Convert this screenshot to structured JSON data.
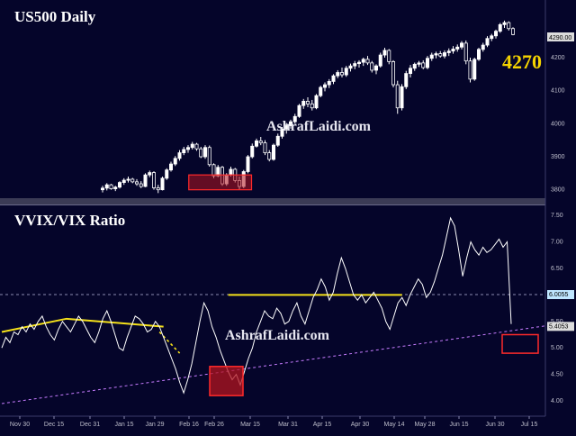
{
  "colors": {
    "background": "#05052a",
    "candle": "#ffffff",
    "ratio_line": "#ffffff",
    "yellow": "#f5e11a",
    "trend_dash": "#c77cff",
    "red_box_fill": "#b3141f",
    "red_box_stroke": "#ff2a2a",
    "grid": "#3a3a6a",
    "label_4270": "#f5d400"
  },
  "chart_data": [
    {
      "type": "candlestick",
      "title": "US500 Daily",
      "watermark": "AshrafLaidi.com",
      "annotation": "4270",
      "last_price_label": "4290.00",
      "y_ticks": [
        "4200",
        "4100",
        "4000",
        "3900",
        "3800"
      ],
      "ylim": [
        3780,
        4320
      ],
      "x_ticks": [
        "Nov 30",
        "Dec 15",
        "Dec 31",
        "Jan 15",
        "Jan 29",
        "Feb 16",
        "Feb 26",
        "Mar 15",
        "Mar 31",
        "Apr 15",
        "Apr 30",
        "May 14",
        "May 28",
        "Jun 15",
        "Jun 30",
        "Jul 15"
      ],
      "candles": [
        [
          3800,
          3812,
          3792,
          3805
        ],
        [
          3805,
          3820,
          3798,
          3815
        ],
        [
          3815,
          3818,
          3800,
          3803
        ],
        [
          3803,
          3812,
          3796,
          3808
        ],
        [
          3808,
          3826,
          3804,
          3822
        ],
        [
          3822,
          3835,
          3815,
          3829
        ],
        [
          3829,
          3840,
          3822,
          3832
        ],
        [
          3832,
          3836,
          3820,
          3824
        ],
        [
          3824,
          3832,
          3812,
          3818
        ],
        [
          3818,
          3826,
          3805,
          3810
        ],
        [
          3810,
          3850,
          3808,
          3845
        ],
        [
          3845,
          3858,
          3838,
          3852
        ],
        [
          3852,
          3856,
          3800,
          3806
        ],
        [
          3806,
          3815,
          3790,
          3800
        ],
        [
          3800,
          3840,
          3798,
          3835
        ],
        [
          3835,
          3865,
          3830,
          3860
        ],
        [
          3860,
          3885,
          3855,
          3878
        ],
        [
          3878,
          3902,
          3872,
          3895
        ],
        [
          3895,
          3920,
          3888,
          3912
        ],
        [
          3912,
          3930,
          3905,
          3922
        ],
        [
          3922,
          3935,
          3912,
          3928
        ],
        [
          3928,
          3945,
          3922,
          3938
        ],
        [
          3938,
          3942,
          3918,
          3924
        ],
        [
          3924,
          3930,
          3896,
          3900
        ],
        [
          3900,
          3935,
          3894,
          3928
        ],
        [
          3928,
          3934,
          3870,
          3876
        ],
        [
          3876,
          3880,
          3835,
          3842
        ],
        [
          3842,
          3875,
          3838,
          3868
        ],
        [
          3868,
          3872,
          3812,
          3818
        ],
        [
          3818,
          3850,
          3812,
          3845
        ],
        [
          3845,
          3870,
          3840,
          3862
        ],
        [
          3862,
          3866,
          3822,
          3828
        ],
        [
          3828,
          3840,
          3800,
          3810
        ],
        [
          3810,
          3860,
          3805,
          3855
        ],
        [
          3855,
          3905,
          3850,
          3900
        ],
        [
          3900,
          3940,
          3895,
          3932
        ],
        [
          3932,
          3955,
          3928,
          3948
        ],
        [
          3948,
          3960,
          3935,
          3942
        ],
        [
          3942,
          3950,
          3905,
          3912
        ],
        [
          3912,
          3920,
          3886,
          3892
        ],
        [
          3892,
          3940,
          3888,
          3935
        ],
        [
          3935,
          3970,
          3930,
          3962
        ],
        [
          3962,
          3990,
          3955,
          3984
        ],
        [
          3984,
          4002,
          3970,
          3994
        ],
        [
          3994,
          4012,
          3985,
          4006
        ],
        [
          4006,
          4030,
          4000,
          4022
        ],
        [
          4022,
          4060,
          4018,
          4055
        ],
        [
          4055,
          4075,
          4045,
          4068
        ],
        [
          4068,
          4080,
          4050,
          4060
        ],
        [
          4060,
          4072,
          4040,
          4048
        ],
        [
          4048,
          4090,
          4044,
          4085
        ],
        [
          4085,
          4115,
          4080,
          4110
        ],
        [
          4110,
          4125,
          4098,
          4118
        ],
        [
          4118,
          4135,
          4108,
          4128
        ],
        [
          4128,
          4150,
          4120,
          4145
        ],
        [
          4145,
          4162,
          4138,
          4155
        ],
        [
          4155,
          4170,
          4140,
          4148
        ],
        [
          4148,
          4175,
          4142,
          4168
        ],
        [
          4168,
          4182,
          4158,
          4175
        ],
        [
          4175,
          4190,
          4165,
          4182
        ],
        [
          4182,
          4192,
          4170,
          4186
        ],
        [
          4186,
          4200,
          4175,
          4195
        ],
        [
          4195,
          4205,
          4178,
          4184
        ],
        [
          4184,
          4190,
          4155,
          4162
        ],
        [
          4162,
          4180,
          4150,
          4175
        ],
        [
          4175,
          4215,
          4170,
          4208
        ],
        [
          4208,
          4230,
          4200,
          4222
        ],
        [
          4222,
          4226,
          4180,
          4188
        ],
        [
          4188,
          4192,
          4110,
          4118
        ],
        [
          4118,
          4130,
          4030,
          4048
        ],
        [
          4048,
          4120,
          4040,
          4112
        ],
        [
          4112,
          4160,
          4105,
          4152
        ],
        [
          4152,
          4178,
          4140,
          4168
        ],
        [
          4168,
          4185,
          4160,
          4180
        ],
        [
          4180,
          4190,
          4172,
          4184
        ],
        [
          4184,
          4192,
          4165,
          4170
        ],
        [
          4170,
          4205,
          4165,
          4198
        ],
        [
          4198,
          4215,
          4190,
          4208
        ],
        [
          4208,
          4218,
          4198,
          4212
        ],
        [
          4212,
          4220,
          4200,
          4205
        ],
        [
          4205,
          4222,
          4198,
          4215
        ],
        [
          4215,
          4228,
          4205,
          4220
        ],
        [
          4220,
          4235,
          4212,
          4226
        ],
        [
          4226,
          4240,
          4218,
          4232
        ],
        [
          4232,
          4250,
          4225,
          4244
        ],
        [
          4244,
          4252,
          4180,
          4190
        ],
        [
          4190,
          4200,
          4125,
          4135
        ],
        [
          4135,
          4200,
          4130,
          4195
        ],
        [
          4195,
          4230,
          4190,
          4225
        ],
        [
          4225,
          4245,
          4218,
          4238
        ],
        [
          4238,
          4265,
          4232,
          4258
        ],
        [
          4258,
          4272,
          4250,
          4266
        ],
        [
          4266,
          4285,
          4258,
          4280
        ],
        [
          4280,
          4305,
          4275,
          4300
        ],
        [
          4300,
          4312,
          4290,
          4306
        ],
        [
          4306,
          4310,
          4282,
          4288
        ],
        [
          4288,
          4292,
          4268,
          4270
        ]
      ]
    },
    {
      "type": "line",
      "title": "VVIX/VIX Ratio",
      "watermark": "AshrafLaidi.com",
      "y_ticks": [
        "7.50",
        "7.00",
        "6.50",
        "6.00",
        "5.50",
        "5.00",
        "4.50",
        "4.00"
      ],
      "ylim": [
        3.78,
        7.62
      ],
      "level_labels": [
        "6.0055",
        "5.4053"
      ],
      "reference_level": 6.0055,
      "values": [
        5.0,
        5.2,
        5.1,
        5.3,
        5.25,
        5.4,
        5.3,
        5.45,
        5.35,
        5.5,
        5.6,
        5.4,
        5.25,
        5.15,
        5.35,
        5.5,
        5.4,
        5.3,
        5.45,
        5.6,
        5.5,
        5.35,
        5.2,
        5.1,
        5.3,
        5.55,
        5.7,
        5.5,
        5.25,
        5.0,
        4.95,
        5.2,
        5.4,
        5.6,
        5.55,
        5.45,
        5.3,
        5.35,
        5.5,
        5.4,
        5.2,
        5.0,
        4.8,
        4.6,
        4.35,
        4.15,
        4.4,
        4.7,
        5.1,
        5.5,
        5.85,
        5.7,
        5.4,
        5.2,
        4.95,
        4.75,
        4.55,
        4.4,
        4.5,
        4.3,
        4.55,
        4.8,
        5.0,
        5.3,
        5.5,
        5.7,
        5.6,
        5.55,
        5.75,
        5.65,
        5.45,
        5.5,
        5.7,
        5.85,
        5.6,
        5.45,
        5.7,
        5.95,
        6.1,
        6.3,
        6.15,
        5.9,
        6.05,
        6.4,
        6.7,
        6.5,
        6.25,
        6.0,
        5.9,
        6.0,
        5.85,
        5.95,
        6.05,
        5.9,
        5.75,
        5.5,
        5.35,
        5.6,
        5.85,
        5.95,
        5.8,
        6.0,
        6.15,
        6.3,
        6.2,
        5.95,
        6.05,
        6.25,
        6.5,
        6.75,
        7.1,
        7.45,
        7.3,
        6.85,
        6.35,
        6.7,
        7.0,
        6.85,
        6.75,
        6.9,
        6.8,
        6.85,
        6.95,
        7.05,
        6.9,
        7.0,
        5.45
      ],
      "annotations": {
        "yellow_segments": [
          {
            "points": [
              [
                0,
                5.3
              ],
              [
                16,
                5.55
              ],
              [
                40,
                5.4
              ]
            ]
          },
          {
            "points": [
              [
                56,
                6.0
              ],
              [
                99,
                6.0
              ]
            ]
          }
        ],
        "yellow_dashed": {
          "points": [
            [
              39,
              5.3
            ],
            [
              44,
              4.9
            ]
          ]
        },
        "support_dashed": {
          "points": [
            [
              0,
              3.95
            ],
            [
              128,
              5.35
            ]
          ]
        },
        "red_boxes": [
          {
            "x": [
              88,
              98
            ],
            "y": [
              4.1,
              4.65
            ],
            "filled": true
          },
          {
            "x": [
              121,
              125
            ],
            "y": [
              4.9,
              5.25
            ],
            "filled": false
          }
        ]
      }
    }
  ]
}
